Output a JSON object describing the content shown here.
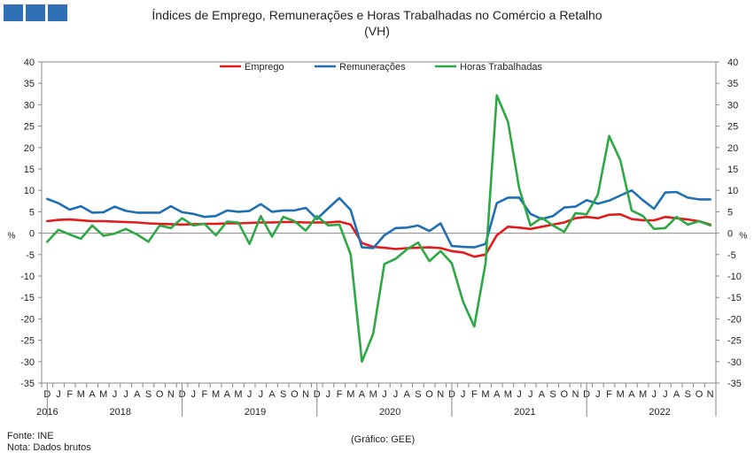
{
  "header": {
    "title_line1": "Índices de Emprego, Remunerações e Horas Trabalhadas no Comércio a Retalho",
    "title_line2": "(VH)"
  },
  "footer": {
    "source": "Fonte: INE",
    "note": "Nota: Dados brutos",
    "credit": "(Gráfico: GEE)"
  },
  "colors": {
    "emprego": "#e31a1c",
    "remuneracoes": "#1f6fb5",
    "horas": "#2ca844",
    "axis": "#888888"
  },
  "chart_data": {
    "type": "line",
    "title": "Índices de Emprego, Remunerações e Horas Trabalhadas no Comércio a Retalho",
    "subtitle": "(VH)",
    "ylabel": "%",
    "ylim": [
      -35,
      40
    ],
    "yticks": [
      -35,
      -30,
      -25,
      -20,
      -15,
      -10,
      -5,
      0,
      5,
      10,
      15,
      20,
      25,
      30,
      35,
      40
    ],
    "legend_position": "top",
    "month_labels": [
      "D",
      "J",
      "F",
      "M",
      "A",
      "M",
      "J",
      "J",
      "A",
      "S",
      "O",
      "N",
      "D",
      "J",
      "F",
      "M",
      "A",
      "M",
      "J",
      "J",
      "A",
      "S",
      "O",
      "N",
      "D",
      "J",
      "F",
      "M",
      "A",
      "M",
      "J",
      "J",
      "A",
      "S",
      "O",
      "N",
      "D",
      "J",
      "F",
      "M",
      "A",
      "M",
      "J",
      "J",
      "A",
      "S",
      "O",
      "N",
      "D",
      "J",
      "F",
      "M",
      "A",
      "M",
      "J",
      "J",
      "A",
      "S",
      "O",
      "N"
    ],
    "year_labels": [
      {
        "label": "2016",
        "at": 0
      },
      {
        "label": "2018",
        "at": 6.5
      },
      {
        "label": "2019",
        "at": 18.5
      },
      {
        "label": "2020",
        "at": 30.5
      },
      {
        "label": "2021",
        "at": 42.5
      },
      {
        "label": "2022",
        "at": 54.5
      }
    ],
    "year_separators": [
      0.5,
      12.5,
      24.5,
      36.5,
      48.5
    ],
    "series": [
      {
        "name": "Emprego",
        "color_key": "emprego",
        "values": [
          2.8,
          3.1,
          3.2,
          3.0,
          2.8,
          2.8,
          2.7,
          2.6,
          2.5,
          2.3,
          2.2,
          2.1,
          2.0,
          2.1,
          2.2,
          2.2,
          2.3,
          2.3,
          2.4,
          2.5,
          2.5,
          2.6,
          2.6,
          2.5,
          2.5,
          2.5,
          2.7,
          2.0,
          -2.3,
          -3.2,
          -3.4,
          -3.7,
          -3.5,
          -3.4,
          -3.3,
          -3.5,
          -4.2,
          -4.5,
          -5.5,
          -5.0,
          -0.5,
          1.5,
          1.3,
          1.0,
          1.5,
          2.0,
          2.5,
          3.5,
          3.8,
          3.5,
          4.3,
          4.4,
          3.3,
          3.0,
          3.0,
          3.8,
          3.5,
          3.2,
          2.8,
          2.0
        ]
      },
      {
        "name": "Remunerações",
        "color_key": "remuneracoes",
        "values": [
          8.0,
          7.0,
          5.5,
          6.3,
          4.8,
          4.9,
          6.2,
          5.2,
          4.8,
          4.8,
          4.8,
          6.3,
          4.9,
          4.5,
          3.8,
          4.0,
          5.3,
          5.0,
          5.2,
          6.8,
          5.0,
          5.3,
          5.3,
          5.9,
          3.3,
          5.8,
          8.2,
          5.4,
          -3.3,
          -3.5,
          -0.5,
          1.2,
          1.3,
          1.8,
          0.5,
          2.3,
          -3.0,
          -3.2,
          -3.3,
          -2.5,
          7.0,
          8.3,
          8.3,
          4.5,
          3.3,
          4.0,
          6.0,
          6.2,
          7.7,
          6.9,
          7.6,
          8.8,
          10.0,
          7.7,
          5.7,
          9.5,
          9.6,
          8.3,
          7.9,
          7.9
        ]
      },
      {
        "name": "Horas Trabalhadas",
        "color_key": "horas",
        "values": [
          -2.0,
          0.8,
          -0.3,
          -1.3,
          1.8,
          -0.6,
          -0.1,
          1.0,
          -0.3,
          -2.0,
          1.8,
          1.2,
          3.5,
          1.8,
          2.2,
          -0.5,
          2.7,
          2.5,
          -2.5,
          4.0,
          -0.8,
          3.8,
          2.8,
          0.6,
          4.0,
          1.8,
          2.0,
          -5.0,
          -30.0,
          -23.5,
          -7.2,
          -6.0,
          -3.8,
          -2.2,
          -6.5,
          -4.2,
          -7.0,
          -16.0,
          -21.8,
          -7.0,
          32.2,
          26.0,
          10.5,
          1.8,
          3.6,
          1.8,
          0.3,
          4.7,
          4.4,
          9.0,
          22.7,
          17.0,
          5.3,
          4.0,
          1.0,
          1.2,
          3.8,
          2.0,
          2.8,
          1.8
        ]
      }
    ]
  }
}
